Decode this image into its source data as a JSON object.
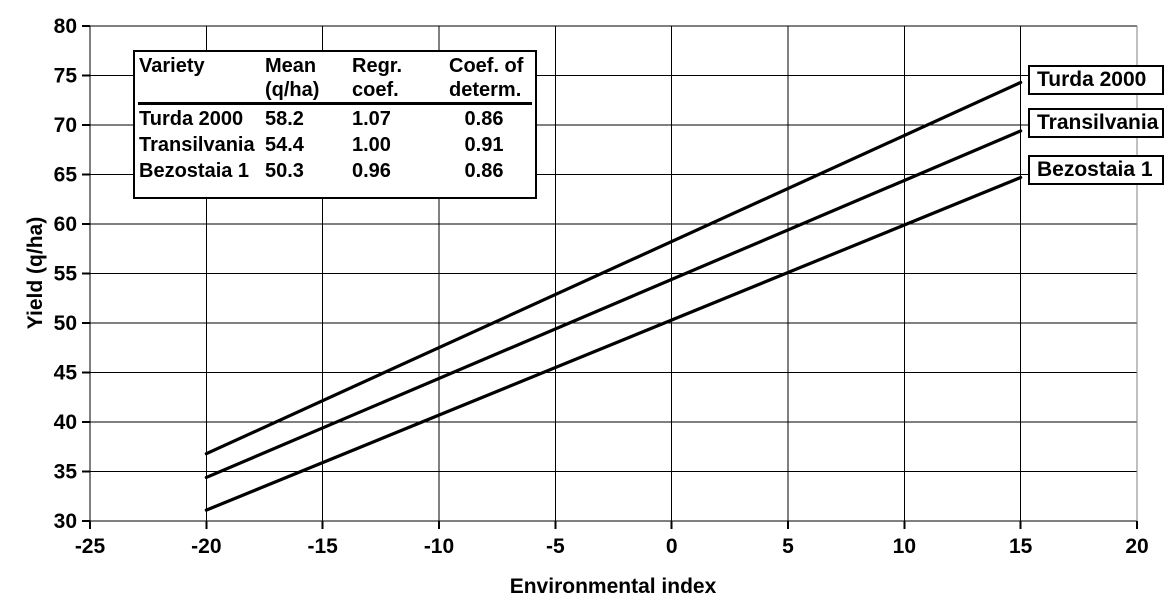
{
  "chart_data": {
    "type": "line",
    "title": "",
    "xlabel": "Environmental index",
    "ylabel": "Yield (q/ha)",
    "xlim": [
      -25,
      20
    ],
    "ylim": [
      30,
      80
    ],
    "xticks": [
      -25,
      -20,
      -15,
      -10,
      -5,
      0,
      5,
      10,
      15,
      20
    ],
    "yticks": [
      30,
      35,
      40,
      45,
      50,
      55,
      60,
      65,
      70,
      75,
      80
    ],
    "grid": true,
    "legend_position": "right",
    "series": [
      {
        "name": "Turda 2000",
        "mean_yield": 58.2,
        "regression_coef": 1.07,
        "x": [
          -20,
          15
        ],
        "y": [
          36.8,
          74.3
        ]
      },
      {
        "name": "Transilvania",
        "mean_yield": 54.4,
        "regression_coef": 1.0,
        "x": [
          -20,
          15
        ],
        "y": [
          34.4,
          69.4
        ]
      },
      {
        "name": "Bezostaia 1",
        "mean_yield": 50.3,
        "regression_coef": 0.96,
        "x": [
          -20,
          15
        ],
        "y": [
          31.1,
          64.7
        ]
      }
    ],
    "colors": {
      "line": "#000000",
      "grid": "#000000",
      "right_border": "#808080",
      "text": "#000000",
      "background": "#ffffff"
    }
  },
  "stats_table": {
    "headers": {
      "col1_line1": "Variety",
      "col1_line2": "",
      "col2_line1": "Mean",
      "col2_line2": "(q/ha)",
      "col3_line1": "Regr.",
      "col3_line2": "coef.",
      "col4_line1": "Coef. of",
      "col4_line2": "determ."
    },
    "rows": [
      {
        "variety": "Turda 2000",
        "mean": "58.2",
        "regr": "1.07",
        "determ": "0.86"
      },
      {
        "variety": "Transilvania",
        "mean": "54.4",
        "regr": "1.00",
        "determ": "0.91"
      },
      {
        "variety": "Bezostaia 1",
        "mean": "50.3",
        "regr": "0.96",
        "determ": "0.86"
      }
    ]
  }
}
